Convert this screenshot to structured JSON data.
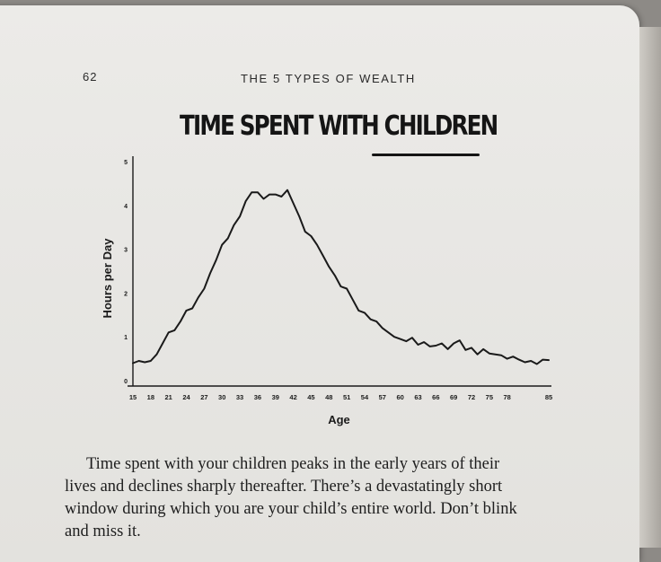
{
  "page": {
    "number": "62",
    "running_head": "THE 5 TYPES OF WEALTH"
  },
  "chart_title_plain": "TIME SPENT WITH ",
  "chart_title_emph": "CHILDREN",
  "body_lines": [
    "Time spent with your children peaks in the early years of their",
    "lives and declines sharply thereafter. There’s a devastatingly short",
    "window during which you are your child’s entire world. Don’t blink",
    "and miss it."
  ],
  "colors": {
    "ink": "#1a1a1a",
    "paper": "#ebeae7"
  },
  "chart_data": {
    "type": "line",
    "title": "TIME SPENT WITH CHILDREN",
    "xlabel": "Age",
    "ylabel": "Hours per Day",
    "xlim": [
      15,
      85
    ],
    "ylim": [
      0,
      5
    ],
    "xticks": [
      15,
      18,
      21,
      24,
      27,
      30,
      33,
      36,
      39,
      42,
      45,
      48,
      51,
      54,
      57,
      60,
      63,
      66,
      69,
      72,
      75,
      78,
      85
    ],
    "yticks": [
      0,
      1,
      2,
      3,
      4,
      5
    ],
    "grid": false,
    "series": [
      {
        "x": [
          15,
          16,
          17,
          18,
          19,
          20,
          21,
          22,
          23,
          24,
          25,
          26,
          27,
          28,
          29,
          30,
          31,
          32,
          33,
          34,
          35,
          36,
          37,
          38,
          39,
          40,
          41,
          42,
          43,
          44,
          45,
          46,
          47,
          48,
          49,
          50,
          51,
          52,
          53,
          54,
          55,
          56,
          57,
          58,
          59,
          60,
          61,
          62,
          63,
          64,
          65,
          66,
          67,
          68,
          69,
          70,
          71,
          72,
          73,
          74,
          75,
          76,
          77,
          78,
          79,
          80,
          81,
          82,
          83,
          84,
          85
        ],
        "values": [
          0.4,
          0.45,
          0.42,
          0.45,
          0.6,
          0.85,
          1.1,
          1.15,
          1.35,
          1.6,
          1.65,
          1.9,
          2.1,
          2.45,
          2.75,
          3.1,
          3.25,
          3.55,
          3.75,
          4.1,
          4.3,
          4.3,
          4.15,
          4.25,
          4.25,
          4.2,
          4.35,
          4.05,
          3.75,
          3.4,
          3.3,
          3.1,
          2.85,
          2.6,
          2.4,
          2.15,
          2.1,
          1.85,
          1.6,
          1.55,
          1.4,
          1.35,
          1.2,
          1.1,
          1.0,
          0.95,
          0.9,
          0.98,
          0.82,
          0.88,
          0.78,
          0.8,
          0.85,
          0.72,
          0.85,
          0.92,
          0.7,
          0.75,
          0.6,
          0.72,
          0.62,
          0.6,
          0.58,
          0.5,
          0.55,
          0.48,
          0.42,
          0.45,
          0.38,
          0.48,
          0.47
        ]
      }
    ]
  }
}
